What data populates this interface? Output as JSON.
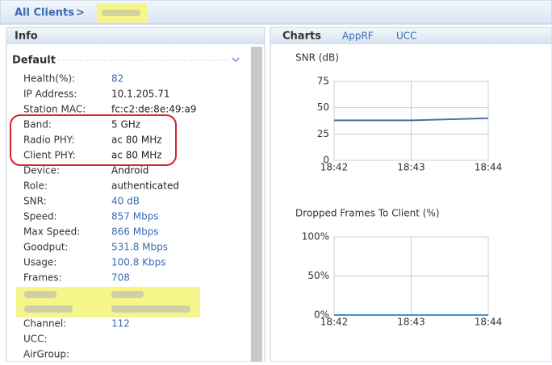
{
  "breadcrumb": {
    "root": "All Clients",
    "separator": ">"
  },
  "info": {
    "title": "Info",
    "section": "Default",
    "rows": [
      {
        "label": "Health(%):",
        "value": "82",
        "color": "#3b6ab0"
      },
      {
        "label": "IP Address:",
        "value": "10.1.205.71",
        "color": "#222222"
      },
      {
        "label": "Station MAC:",
        "value": "fc:c2:de:8e:49:a9",
        "color": "#222222"
      },
      {
        "label": "Band:",
        "value": "5 GHz",
        "color": "#222222"
      },
      {
        "label": "Radio PHY:",
        "value": "ac 80 MHz",
        "color": "#222222"
      },
      {
        "label": "Client PHY:",
        "value": "ac 80 MHz",
        "color": "#222222"
      },
      {
        "label": "Device:",
        "value": "Android",
        "color": "#222222"
      },
      {
        "label": "Role:",
        "value": "authenticated",
        "color": "#222222"
      },
      {
        "label": "SNR:",
        "value": "40 dB",
        "color": "#3b6ab0"
      },
      {
        "label": "Speed:",
        "value": "857 Mbps",
        "color": "#3b6ab0"
      },
      {
        "label": "Max Speed:",
        "value": "866 Mbps",
        "color": "#3b6ab0"
      },
      {
        "label": "Goodput:",
        "value": "531.8 Mbps",
        "color": "#3b6ab0"
      },
      {
        "label": "Usage:",
        "value": "100.8 Kbps",
        "color": "#3b6ab0"
      },
      {
        "label": "Frames:",
        "value": "708",
        "color": "#3b6ab0"
      },
      {
        "label": "Channel:",
        "value": "112",
        "color": "#3b6ab0"
      },
      {
        "label": "UCC:",
        "value": "",
        "color": "#222222"
      },
      {
        "label": "AirGroup:",
        "value": "",
        "color": "#222222"
      }
    ]
  },
  "tabs": [
    "Charts",
    "AppRF",
    "UCC"
  ],
  "charts": [
    {
      "type": "line",
      "title": "SNR (dB)",
      "categories": [
        "18:42",
        "18:43",
        "18:44"
      ],
      "values": [
        38,
        38,
        40
      ],
      "color": "#4a6fa5",
      "ylim": [
        0,
        75
      ],
      "yticks": [
        0,
        25,
        50,
        75
      ]
    },
    {
      "type": "line",
      "title": "Dropped Frames To Client (%)",
      "categories": [
        "18:42",
        "18:43",
        "18:44"
      ],
      "values": [
        0,
        0,
        0
      ],
      "color": "#4a8fc5",
      "ylim": [
        0,
        100
      ],
      "yticks": [
        {
          "value": 0,
          "label": "0%"
        },
        {
          "value": 50,
          "label": "50%"
        },
        {
          "value": 100,
          "label": "100%"
        }
      ]
    }
  ]
}
